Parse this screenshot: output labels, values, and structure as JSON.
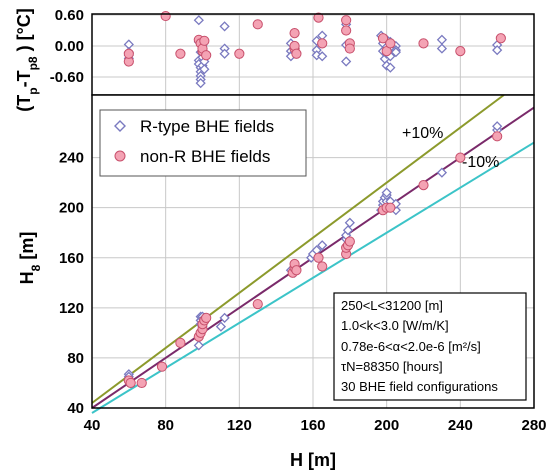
{
  "chart_data": [
    {
      "type": "scatter",
      "panel": "top",
      "ylabel_parts": [
        "(T",
        "p",
        "-T",
        "p8",
        " ) [°C]"
      ],
      "ylim": [
        -0.95,
        0.62
      ],
      "ytick_labels": [
        "0.60",
        "0.00",
        "-0.60"
      ],
      "ytick_values": [
        0.6,
        0.0,
        -0.6
      ],
      "xlim": [
        40,
        280
      ],
      "grid": true,
      "series": [
        {
          "name": "R-type BHE fields",
          "marker": "diamond",
          "color": "#7a7ac0",
          "x": [
            60,
            60,
            60,
            60,
            98,
            98,
            98,
            98,
            99,
            99,
            99,
            99,
            99,
            99,
            100,
            100,
            100,
            100,
            101,
            101,
            101,
            112,
            112,
            112,
            148,
            148,
            148,
            150,
            150,
            150,
            162,
            162,
            162,
            165,
            165,
            178,
            178,
            178,
            197,
            198,
            198,
            199,
            200,
            200,
            200,
            200,
            202,
            202,
            202,
            205,
            205,
            205,
            230,
            230,
            260,
            260
          ],
          "y": [
            0.03,
            -0.12,
            -0.18,
            -0.24,
            0.5,
            0.08,
            -0.28,
            -0.35,
            -0.42,
            -0.5,
            -0.58,
            -0.65,
            -0.72,
            -0.12,
            0.02,
            -0.05,
            -0.22,
            -0.38,
            -0.15,
            -0.3,
            -0.45,
            0.38,
            -0.05,
            -0.15,
            0.05,
            -0.1,
            -0.2,
            0.25,
            -0.05,
            -0.12,
            0.1,
            -0.08,
            -0.18,
            0.2,
            -0.2,
            0.42,
            0.02,
            -0.3,
            0.2,
            0.05,
            -0.1,
            -0.25,
            -0.38,
            0.12,
            -0.02,
            -0.15,
            0.08,
            -0.2,
            -0.42,
            0.0,
            -0.08,
            -0.12,
            0.12,
            -0.05,
            0.02,
            -0.08
          ]
        },
        {
          "name": "non-R BHE fields",
          "marker": "circle",
          "color": "#e8728e",
          "x": [
            60,
            60,
            80,
            88,
            98,
            99,
            100,
            100,
            101,
            102,
            120,
            130,
            150,
            150,
            150,
            151,
            163,
            165,
            178,
            178,
            180,
            180,
            198,
            200,
            202,
            220,
            240,
            262
          ],
          "y": [
            -0.3,
            -0.15,
            0.58,
            -0.15,
            0.12,
            0.05,
            -0.1,
            -0.05,
            0.1,
            -0.18,
            -0.15,
            0.42,
            0.25,
            -0.05,
            0.0,
            -0.15,
            0.55,
            0.05,
            0.5,
            0.3,
            0.05,
            -0.05,
            0.15,
            -0.1,
            0.05,
            0.05,
            -0.1,
            0.15
          ]
        }
      ]
    },
    {
      "type": "scatter",
      "panel": "bottom",
      "ylabel_parts": [
        "H",
        "8",
        " [m]"
      ],
      "xlabel": "H [m]",
      "xlim": [
        40,
        280
      ],
      "ylim": [
        40,
        290
      ],
      "xtick_labels": [
        "40",
        "80",
        "120",
        "160",
        "200",
        "240",
        "280"
      ],
      "xtick_values": [
        40,
        80,
        120,
        160,
        200,
        240,
        280
      ],
      "ytick_labels": [
        "40",
        "80",
        "120",
        "160",
        "200",
        "240"
      ],
      "ytick_values": [
        40,
        80,
        120,
        160,
        200,
        240
      ],
      "grid": true,
      "legend_position": "top-left",
      "lines": [
        {
          "label": "+10%",
          "factor": 1.1,
          "color": "#8c9a2c"
        },
        {
          "label": "",
          "factor": 1.0,
          "color": "#7a2a6a"
        },
        {
          "label": "-10%",
          "factor": 0.9,
          "color": "#3cc4c8"
        }
      ],
      "series": [
        {
          "name": "R-type BHE fields",
          "marker": "diamond",
          "color": "#7a7ac0",
          "x": [
            60,
            60,
            60,
            98,
            99,
            99,
            99,
            100,
            100,
            100,
            100,
            101,
            110,
            112,
            148,
            150,
            150,
            150,
            159,
            160,
            162,
            165,
            178,
            178,
            179,
            180,
            197,
            198,
            198,
            199,
            200,
            200,
            200,
            200,
            202,
            202,
            205,
            205,
            230,
            260,
            260
          ],
          "y": [
            67,
            65,
            62,
            90,
            107,
            110,
            113,
            113,
            108,
            105,
            102,
            112,
            105,
            112,
            150,
            148,
            152,
            155,
            160,
            163,
            166,
            170,
            175,
            178,
            182,
            188,
            198,
            202,
            205,
            208,
            200,
            205,
            210,
            212,
            200,
            205,
            198,
            203,
            228,
            262,
            265
          ]
        },
        {
          "name": "non-R BHE fields",
          "marker": "circle",
          "color": "#e8728e",
          "x": [
            60,
            61,
            67,
            78,
            88,
            98,
            99,
            100,
            100,
            101,
            102,
            130,
            149,
            150,
            150,
            151,
            163,
            165,
            178,
            178,
            179,
            180,
            198,
            200,
            202,
            220,
            240,
            260
          ],
          "y": [
            62,
            60,
            60,
            73,
            92,
            97,
            100,
            103,
            107,
            110,
            112,
            123,
            148,
            152,
            155,
            150,
            160,
            153,
            163,
            168,
            170,
            173,
            198,
            200,
            200,
            218,
            240,
            257
          ]
        }
      ],
      "annotation_lines": [
        "250<L<31200 [m]",
        "1.0<k<3.0 [W/m/K]",
        "0.78e-6<α<2.0e-6 [m²/s]",
        "τN=88350 [hours]",
        "30 BHE field configurations"
      ]
    }
  ]
}
